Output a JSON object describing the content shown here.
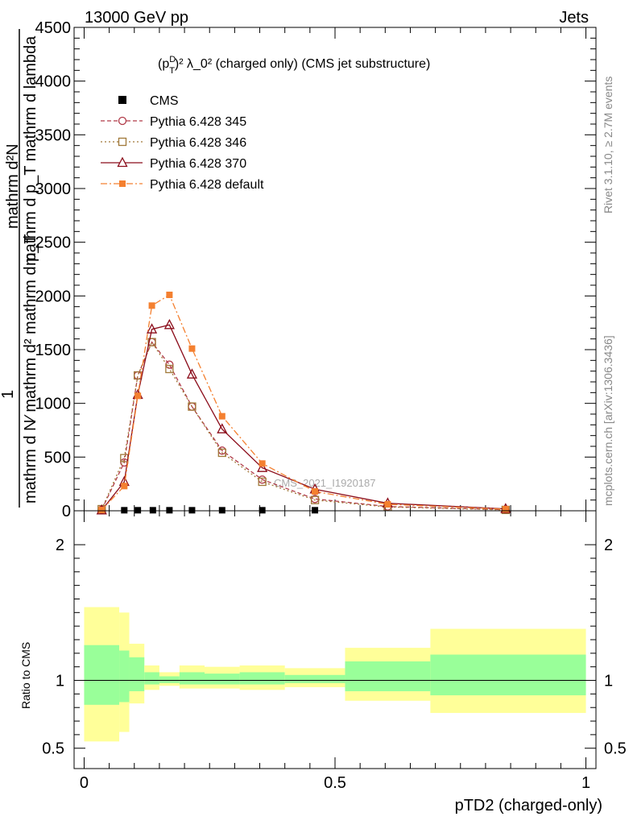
{
  "header": {
    "left": "13000 GeV pp",
    "right": "Jets"
  },
  "side_text": {
    "rivet": "Rivet 3.1.10, ≥ 2.7M events",
    "mcplots": "mcplots.cern.ch [arXiv:1306.3436]"
  },
  "chart_data": [
    {
      "type": "line",
      "title_parts": {
        "p": "(p",
        "sup_d": "D",
        "sub_t": "T",
        "rest": ")² λ_0² (charged only) (CMS jet substructure)"
      },
      "ylabel": "1 / mathrm d N∕ mathrm d² mathrm d p_T mathrm d²N / mathrm d² mathrm d p_T mathrm d lambda",
      "ylabel_lines": [
        "mathrm d²N",
        "mathrm d p_T mathrm d lambda"
      ],
      "ylabel_frac_num": "1",
      "ylabel_frac_den": "mathrm d N∕ mathrm d² mathrm d p_T",
      "xlim": [
        -0.02,
        1.02
      ],
      "ylim": [
        0,
        4500
      ],
      "yticks": [
        0,
        500,
        1000,
        1500,
        2000,
        2500,
        3000,
        3500,
        4000,
        4500
      ],
      "ytick_labels": [
        "0",
        "500",
        "1000",
        "1500",
        "2000",
        "2500",
        "3000",
        "3500",
        "4000",
        "4500"
      ],
      "watermark": "CMS_2021_I1920187",
      "cms": {
        "name": "CMS",
        "x": [
          0.08,
          0.107,
          0.137,
          0.17,
          0.215,
          0.275,
          0.355,
          0.46
        ],
        "y": [
          5,
          5,
          5,
          5,
          5,
          5,
          5,
          5
        ]
      },
      "series": [
        {
          "name": "Pythia 6.428 345",
          "color": "#b03a48",
          "marker": "circle",
          "dash": "5,3",
          "x": [
            0.035,
            0.08,
            0.107,
            0.135,
            0.17,
            0.215,
            0.275,
            0.355,
            0.46,
            0.605,
            0.84
          ],
          "y": [
            10,
            450,
            1260,
            1570,
            1360,
            970,
            560,
            290,
            110,
            40,
            10
          ]
        },
        {
          "name": "Pythia 6.428 346",
          "color": "#a07838",
          "marker": "square",
          "dash": "2,3",
          "x": [
            0.035,
            0.08,
            0.107,
            0.135,
            0.17,
            0.215,
            0.275,
            0.355,
            0.46,
            0.605,
            0.84
          ],
          "y": [
            15,
            490,
            1260,
            1570,
            1320,
            970,
            540,
            270,
            100,
            35,
            8
          ]
        },
        {
          "name": "Pythia 6.428 370",
          "color": "#8b0c1a",
          "marker": "triangle",
          "dash": "",
          "x": [
            0.035,
            0.08,
            0.107,
            0.135,
            0.17,
            0.215,
            0.275,
            0.355,
            0.46,
            0.605,
            0.84
          ],
          "y": [
            5,
            270,
            1080,
            1690,
            1730,
            1270,
            760,
            400,
            200,
            70,
            18
          ]
        },
        {
          "name": "Pythia 6.428 default",
          "color": "#f48030",
          "marker": "filled-square",
          "dash": "8,3,2,3",
          "x": [
            0.035,
            0.08,
            0.107,
            0.135,
            0.17,
            0.215,
            0.275,
            0.355,
            0.46,
            0.605,
            0.84
          ],
          "y": [
            8,
            230,
            1070,
            1910,
            2010,
            1510,
            880,
            440,
            180,
            60,
            15
          ]
        }
      ]
    },
    {
      "type": "area",
      "ylabel": "Ratio to CMS",
      "xlabel": "pTD2 (charged-only)",
      "xlim": [
        -0.02,
        1.02
      ],
      "ylim": [
        0.35,
        2.25
      ],
      "yticks": [
        0.5,
        1,
        2
      ],
      "ytick_labels": [
        "0.5",
        "1",
        "2"
      ],
      "xticks": [
        0,
        0.5,
        1
      ],
      "xtick_labels": [
        "0",
        "0.5",
        "1"
      ],
      "reference": 1,
      "bands": [
        {
          "x0": 0.0,
          "x1": 0.07,
          "y_lo": 0.55,
          "y_hi": 1.54,
          "g_lo": 0.82,
          "g_hi": 1.26
        },
        {
          "x0": 0.07,
          "x1": 0.09,
          "y_lo": 0.62,
          "y_hi": 1.5,
          "g_lo": 0.84,
          "g_hi": 1.22
        },
        {
          "x0": 0.09,
          "x1": 0.12,
          "y_lo": 0.83,
          "y_hi": 1.27,
          "g_lo": 0.92,
          "g_hi": 1.17
        },
        {
          "x0": 0.12,
          "x1": 0.15,
          "y_lo": 0.93,
          "y_hi": 1.11,
          "g_lo": 0.97,
          "g_hi": 1.06
        },
        {
          "x0": 0.15,
          "x1": 0.19,
          "y_lo": 0.96,
          "y_hi": 1.06,
          "g_lo": 0.98,
          "g_hi": 1.03
        },
        {
          "x0": 0.19,
          "x1": 0.24,
          "y_lo": 0.94,
          "y_hi": 1.11,
          "g_lo": 0.97,
          "g_hi": 1.06
        },
        {
          "x0": 0.24,
          "x1": 0.31,
          "y_lo": 0.94,
          "y_hi": 1.1,
          "g_lo": 0.97,
          "g_hi": 1.05
        },
        {
          "x0": 0.31,
          "x1": 0.4,
          "y_lo": 0.93,
          "y_hi": 1.11,
          "g_lo": 0.97,
          "g_hi": 1.06
        },
        {
          "x0": 0.4,
          "x1": 0.52,
          "y_lo": 0.95,
          "y_hi": 1.09,
          "g_lo": 0.98,
          "g_hi": 1.04
        },
        {
          "x0": 0.52,
          "x1": 0.69,
          "y_lo": 0.85,
          "y_hi": 1.24,
          "g_lo": 0.92,
          "g_hi": 1.14
        },
        {
          "x0": 0.69,
          "x1": 1.0,
          "y_lo": 0.76,
          "y_hi": 1.38,
          "g_lo": 0.89,
          "g_hi": 1.19
        }
      ]
    }
  ]
}
